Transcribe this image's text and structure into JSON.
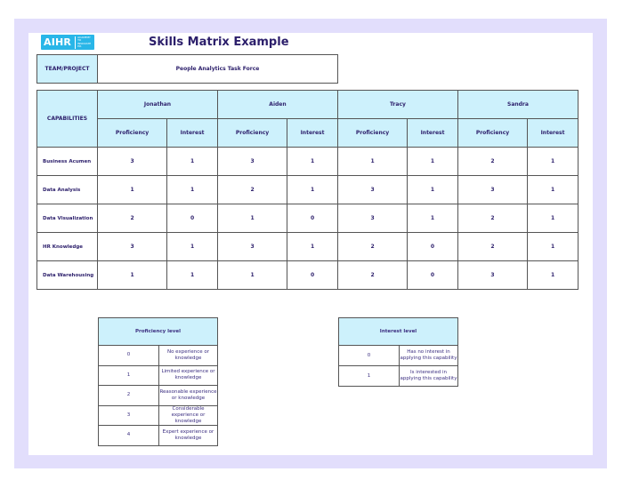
{
  "logo": {
    "brand": "AIHR",
    "tagline": "ACADEMY TO INNOVATE HR"
  },
  "title": "Skills Matrix Example",
  "team": {
    "label": "TEAM/PROJECT",
    "value": "People Analytics Task Force"
  },
  "matrix": {
    "capabilities_label": "CAPABILITIES",
    "people": [
      "Jonathan",
      "Aiden",
      "Tracy",
      "Sandra"
    ],
    "sub_headers": [
      "Proficiency",
      "Interest"
    ],
    "rows": [
      {
        "capability": "Business Acumen",
        "scores": [
          3,
          1,
          3,
          1,
          1,
          1,
          2,
          1
        ]
      },
      {
        "capability": "Data Analysis",
        "scores": [
          1,
          1,
          2,
          1,
          3,
          1,
          3,
          1
        ]
      },
      {
        "capability": "Data Visualization",
        "scores": [
          2,
          0,
          1,
          0,
          3,
          1,
          2,
          1
        ]
      },
      {
        "capability": "HR Knowledge",
        "scores": [
          3,
          1,
          3,
          1,
          2,
          0,
          2,
          1
        ]
      },
      {
        "capability": "Data Warehousing",
        "scores": [
          1,
          1,
          1,
          0,
          2,
          0,
          3,
          1
        ]
      }
    ]
  },
  "proficiency_legend": {
    "title": "Proficiency level",
    "levels": [
      {
        "value": "0",
        "desc": "No experience or knowledge"
      },
      {
        "value": "1",
        "desc": "Limited experience or knowledge"
      },
      {
        "value": "2",
        "desc": "Reasonable experience or knowledge"
      },
      {
        "value": "3",
        "desc": "Considerable experience or knowledge"
      },
      {
        "value": "4",
        "desc": "Expert experience or knowledge"
      }
    ]
  },
  "interest_legend": {
    "title": "Interest level",
    "levels": [
      {
        "value": "0",
        "desc": "Has no interest in applying this capability"
      },
      {
        "value": "1",
        "desc": "Is interested in applying this capability"
      }
    ]
  }
}
